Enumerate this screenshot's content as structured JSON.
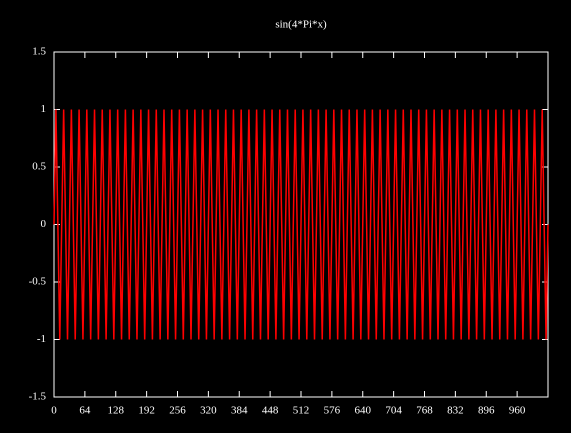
{
  "chart_data": {
    "type": "line",
    "title": "sin(4*Pi*x)",
    "x": [
      0,
      4,
      8,
      12,
      16,
      20,
      24,
      28,
      32,
      36,
      40,
      44,
      48,
      52,
      56,
      60,
      64,
      68,
      72,
      76,
      80,
      84,
      88,
      92,
      96,
      100,
      104,
      108,
      112,
      116,
      120,
      124,
      128,
      132,
      136,
      140,
      144,
      148,
      152,
      156,
      160,
      164,
      168,
      172,
      176,
      180,
      184,
      188,
      192,
      196,
      200,
      204,
      208,
      212,
      216,
      220,
      224,
      228,
      232,
      236,
      240,
      244,
      248,
      252,
      256,
      260,
      264,
      268,
      272,
      276,
      280,
      284,
      288,
      292,
      296,
      300,
      304,
      308,
      312,
      316,
      320,
      324,
      328,
      332,
      336,
      340,
      344,
      348,
      352,
      356,
      360,
      364,
      368,
      372,
      376,
      380,
      384,
      388,
      392,
      396,
      400,
      404,
      408,
      412,
      416,
      420,
      424,
      428,
      432,
      436,
      440,
      444,
      448,
      452,
      456,
      460,
      464,
      468,
      472,
      476,
      480,
      484,
      488,
      492,
      496,
      500,
      504,
      508,
      512,
      516,
      520,
      524,
      528,
      532,
      536,
      540,
      544,
      548,
      552,
      556,
      560,
      564,
      568,
      572,
      576,
      580,
      584,
      588,
      592,
      596,
      600,
      604,
      608,
      612,
      616,
      620,
      624,
      628,
      632,
      636,
      640,
      644,
      648,
      652,
      656,
      660,
      664,
      668,
      672,
      676,
      680,
      684,
      688,
      692,
      696,
      700,
      704,
      708,
      712,
      716,
      720,
      724,
      728,
      732,
      736,
      740,
      744,
      748,
      752,
      756,
      760,
      764,
      768,
      772,
      776,
      780,
      784,
      788,
      792,
      796,
      800,
      804,
      808,
      812,
      816,
      820,
      824,
      828,
      832,
      836,
      840,
      844,
      848,
      852,
      856,
      860,
      864,
      868,
      872,
      876,
      880,
      884,
      888,
      892,
      896,
      900,
      904,
      908,
      912,
      916,
      920,
      924,
      928,
      932,
      936,
      940,
      944,
      948,
      952,
      956,
      960,
      964,
      968,
      972,
      976,
      980,
      984,
      988,
      992,
      996,
      1000,
      1004,
      1008,
      1012,
      1016,
      1020,
      1024
    ],
    "series": [
      {
        "color": "#ff0000",
        "values": [
          0,
          1,
          0,
          -1,
          0,
          1,
          0,
          -1,
          0,
          1,
          0,
          -1,
          0,
          1,
          0,
          -1,
          0,
          1,
          0,
          -1,
          0,
          1,
          0,
          -1,
          0,
          1,
          0,
          -1,
          0,
          1,
          0,
          -1,
          0,
          1,
          0,
          -1,
          0,
          1,
          0,
          -1,
          0,
          1,
          0,
          -1,
          0,
          1,
          0,
          -1,
          0,
          1,
          0,
          -1,
          0,
          1,
          0,
          -1,
          0,
          1,
          0,
          -1,
          0,
          1,
          0,
          -1,
          0,
          1,
          0,
          -1,
          0,
          1,
          0,
          -1,
          0,
          1,
          0,
          -1,
          0,
          1,
          0,
          -1,
          0,
          1,
          0,
          -1,
          0,
          1,
          0,
          -1,
          0,
          1,
          0,
          -1,
          0,
          1,
          0,
          -1,
          0,
          1,
          0,
          -1,
          0,
          1,
          0,
          -1,
          0,
          1,
          0,
          -1,
          0,
          1,
          0,
          -1,
          0,
          1,
          0,
          -1,
          0,
          1,
          0,
          -1,
          0,
          1,
          0,
          -1,
          0,
          1,
          0,
          -1,
          0,
          1,
          0,
          -1,
          0,
          1,
          0,
          -1,
          0,
          1,
          0,
          -1,
          0,
          1,
          0,
          -1,
          0,
          1,
          0,
          -1,
          0,
          1,
          0,
          -1,
          0,
          1,
          0,
          -1,
          0,
          1,
          0,
          -1,
          0,
          1,
          0,
          -1,
          0,
          1,
          0,
          -1,
          0,
          1,
          0,
          -1,
          0,
          1,
          0,
          -1,
          0,
          1,
          0,
          -1,
          0,
          1,
          0,
          -1,
          0,
          1,
          0,
          -1,
          0,
          1,
          0,
          -1,
          0,
          1,
          0,
          -1,
          0,
          1,
          0,
          -1,
          0,
          1,
          0,
          -1,
          0,
          1,
          0,
          -1,
          0,
          1,
          0,
          -1,
          0,
          1,
          0,
          -1,
          0,
          1,
          0,
          -1,
          0,
          1,
          0,
          -1,
          0,
          1,
          0,
          -1,
          0,
          1,
          0,
          -1,
          0,
          1,
          0,
          -1,
          0,
          1,
          0,
          -1,
          0,
          1,
          0,
          -1,
          0,
          1,
          0,
          -1,
          0,
          1,
          0,
          -1,
          0,
          1,
          0,
          -1,
          0
        ]
      }
    ],
    "xlim": [
      0,
      1024
    ],
    "xticks": [
      0,
      64,
      128,
      192,
      256,
      320,
      384,
      448,
      512,
      576,
      640,
      704,
      768,
      832,
      896,
      960
    ],
    "ylim": [
      -1.5,
      1.5
    ],
    "yticks": [
      -1.5,
      -1,
      -0.5,
      0,
      0.5,
      1,
      1.5
    ]
  }
}
